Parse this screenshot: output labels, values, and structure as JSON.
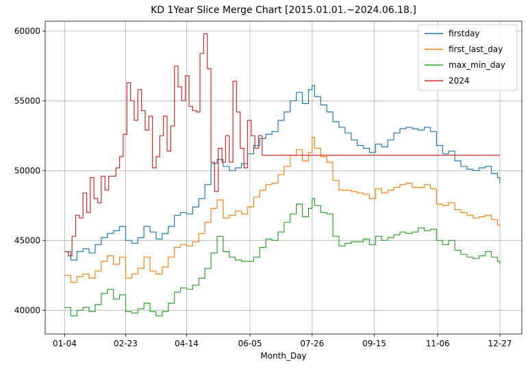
{
  "chart_data": {
    "type": "line",
    "title": "KD 1Year Slice Merge Chart [2015.01.01.~2024.06.18.]",
    "xlabel": "Month_Day",
    "ylabel": "",
    "x_tick_labels": [
      "01-04",
      "02-23",
      "04-14",
      "06-05",
      "07-26",
      "09-15",
      "11-06",
      "12-27"
    ],
    "x_tick_positions": [
      0,
      50,
      100,
      152,
      203,
      254,
      306,
      357
    ],
    "xlim": [
      -16,
      375
    ],
    "ylim": [
      38300,
      60700
    ],
    "y_ticks": [
      40000,
      45000,
      50000,
      55000,
      60000
    ],
    "y_tick_labels": [
      "40000",
      "45000",
      "50000",
      "55000",
      "60000"
    ],
    "grid": true,
    "legend_position": "top-right",
    "series": [
      {
        "name": "firstday",
        "color": "#1f77b4",
        "x": [
          0,
          5,
          10,
          15,
          20,
          25,
          30,
          35,
          40,
          45,
          50,
          55,
          60,
          65,
          70,
          75,
          80,
          85,
          90,
          95,
          100,
          105,
          110,
          115,
          120,
          125,
          130,
          135,
          140,
          145,
          150,
          155,
          160,
          165,
          170,
          175,
          180,
          185,
          190,
          195,
          200,
          203,
          205,
          210,
          215,
          220,
          225,
          230,
          235,
          240,
          245,
          250,
          255,
          260,
          265,
          270,
          275,
          280,
          285,
          290,
          295,
          300,
          305,
          310,
          315,
          320,
          325,
          330,
          335,
          340,
          345,
          350,
          355,
          357
        ],
        "values": [
          44200,
          43600,
          44200,
          44400,
          44100,
          44700,
          45200,
          45500,
          45700,
          46000,
          45000,
          44800,
          45200,
          46000,
          45600,
          45100,
          45500,
          46000,
          46800,
          47000,
          46900,
          47400,
          48000,
          49000,
          50500,
          50800,
          50300,
          50000,
          50200,
          50500,
          51200,
          51800,
          52300,
          52600,
          52800,
          53600,
          54200,
          55000,
          55600,
          54800,
          55800,
          56100,
          55300,
          54700,
          54200,
          53500,
          53100,
          52700,
          52200,
          51800,
          51600,
          51300,
          51900,
          51700,
          52200,
          52700,
          53000,
          53100,
          53000,
          52900,
          53100,
          52800,
          51800,
          51200,
          51400,
          50700,
          50300,
          50100,
          50000,
          50200,
          50300,
          49800,
          49500,
          49100
        ]
      },
      {
        "name": "first_last_day",
        "color": "#ff7f0e",
        "x": [
          0,
          5,
          10,
          15,
          20,
          25,
          30,
          35,
          40,
          45,
          50,
          55,
          60,
          65,
          70,
          75,
          80,
          85,
          90,
          95,
          100,
          105,
          110,
          115,
          120,
          125,
          130,
          135,
          140,
          145,
          150,
          155,
          160,
          165,
          170,
          175,
          180,
          185,
          190,
          195,
          200,
          203,
          205,
          210,
          215,
          220,
          225,
          230,
          235,
          240,
          245,
          250,
          255,
          260,
          265,
          270,
          275,
          280,
          285,
          290,
          295,
          300,
          305,
          310,
          315,
          320,
          325,
          330,
          335,
          340,
          345,
          350,
          355,
          357
        ],
        "values": [
          42500,
          42000,
          42400,
          42600,
          42300,
          42800,
          43500,
          43900,
          43300,
          43800,
          42300,
          42600,
          43000,
          43800,
          42800,
          42600,
          43100,
          43800,
          44500,
          44700,
          44600,
          44900,
          45500,
          46300,
          47300,
          47900,
          46600,
          46800,
          47100,
          46900,
          47400,
          48100,
          48600,
          49000,
          49100,
          49700,
          50300,
          51100,
          51500,
          50700,
          51300,
          52400,
          51600,
          51000,
          50600,
          49300,
          48600,
          48600,
          48500,
          48400,
          48300,
          48000,
          48700,
          48400,
          48600,
          48800,
          49000,
          49100,
          48800,
          48800,
          49000,
          48700,
          47600,
          47500,
          47700,
          47200,
          47000,
          46800,
          46600,
          46700,
          46800,
          46500,
          46100,
          46000
        ]
      },
      {
        "name": "max_min_day",
        "color": "#2ca02c",
        "x": [
          0,
          5,
          10,
          15,
          20,
          25,
          30,
          35,
          40,
          45,
          50,
          55,
          60,
          65,
          70,
          75,
          80,
          85,
          90,
          95,
          100,
          105,
          110,
          115,
          120,
          125,
          130,
          135,
          140,
          145,
          150,
          155,
          160,
          165,
          170,
          175,
          180,
          185,
          190,
          195,
          200,
          203,
          205,
          210,
          215,
          220,
          225,
          230,
          235,
          240,
          245,
          250,
          255,
          260,
          265,
          270,
          275,
          280,
          285,
          290,
          295,
          300,
          305,
          310,
          315,
          320,
          325,
          330,
          335,
          340,
          345,
          350,
          355,
          357
        ],
        "values": [
          40200,
          39600,
          40000,
          40200,
          39900,
          40400,
          41200,
          41500,
          40800,
          41100,
          39900,
          39800,
          40100,
          40500,
          39900,
          39600,
          39900,
          40500,
          41300,
          41600,
          41500,
          41800,
          42300,
          43000,
          44100,
          45300,
          44200,
          43800,
          43600,
          43500,
          43500,
          43800,
          44500,
          45100,
          45000,
          45600,
          46300,
          46900,
          47600,
          46700,
          47300,
          48000,
          47500,
          47000,
          46900,
          45300,
          44600,
          44800,
          44900,
          44900,
          45100,
          44700,
          45300,
          45000,
          45200,
          45400,
          45600,
          45500,
          45600,
          45900,
          45700,
          45800,
          45000,
          44700,
          45000,
          44300,
          44000,
          43800,
          43700,
          43900,
          44200,
          43800,
          43500,
          43300
        ]
      },
      {
        "name": "2024",
        "color": "#d62728",
        "x": [
          0,
          3,
          6,
          9,
          12,
          15,
          18,
          21,
          24,
          27,
          30,
          33,
          36,
          39,
          42,
          45,
          48,
          51,
          54,
          57,
          60,
          63,
          66,
          69,
          72,
          75,
          78,
          81,
          84,
          87,
          90,
          93,
          96,
          99,
          102,
          105,
          108,
          111,
          114,
          117,
          120,
          123,
          126,
          129,
          132,
          135,
          138,
          141,
          144,
          147,
          150,
          153,
          156,
          159,
          162,
          165,
          168,
          172,
          180,
          200,
          220,
          250,
          280,
          300,
          320,
          340,
          357
        ],
        "values": [
          44200,
          43900,
          45300,
          46800,
          46600,
          48400,
          47000,
          49500,
          48000,
          47700,
          49600,
          48600,
          49600,
          49600,
          50200,
          51000,
          52600,
          56300,
          55000,
          53600,
          55800,
          54300,
          52900,
          53900,
          50200,
          51000,
          52500,
          53900,
          51400,
          53200,
          57500,
          56000,
          55000,
          56800,
          54600,
          54300,
          54200,
          58400,
          59800,
          57300,
          50600,
          48500,
          51600,
          50600,
          52500,
          50600,
          56400,
          54200,
          51600,
          50200,
          53600,
          52500,
          51600,
          52500,
          51100,
          51100,
          51100,
          51100,
          51100,
          51100,
          51100,
          51100,
          51100,
          51100,
          51100,
          51100,
          51100
        ]
      }
    ]
  }
}
